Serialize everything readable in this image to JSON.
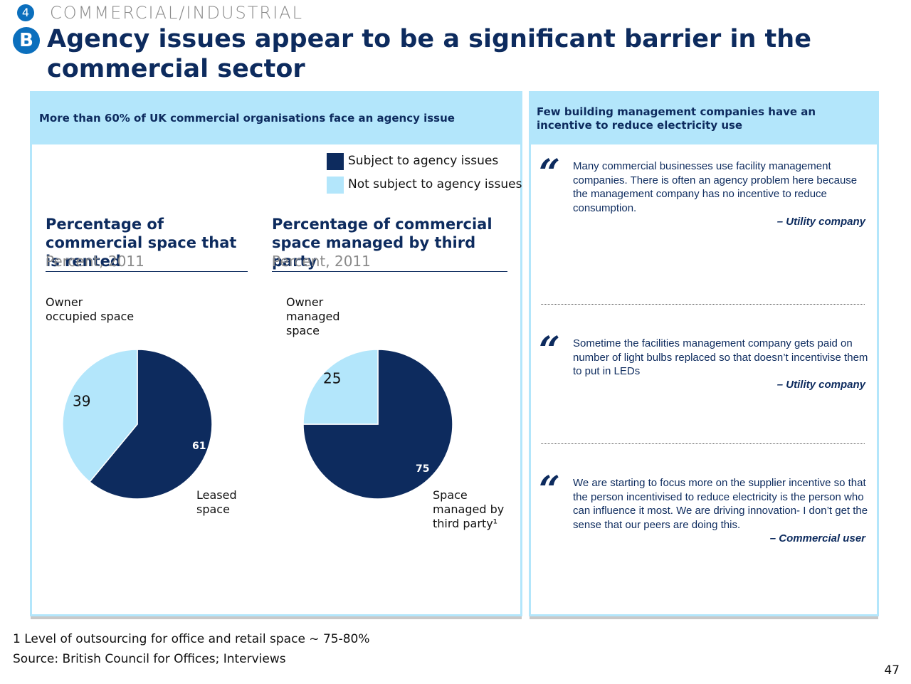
{
  "header": {
    "section_number": "4",
    "section_label": "COMMERCIAL/INDUSTRIAL",
    "sub_letter": "B",
    "title": "Agency issues appear to be a significant barrier in the commercial sector"
  },
  "left_panel": {
    "heading": "More than 60% of UK commercial organisations face an agency issue",
    "legend": [
      {
        "label": "Subject to agency issues",
        "color": "#0d2b5e"
      },
      {
        "label": "Not subject to agency issues",
        "color": "#b3e6fb"
      }
    ]
  },
  "chart_data": [
    {
      "type": "pie",
      "title": "Percentage of commercial space that is rented",
      "unit": "Percent, 2011",
      "slices": [
        {
          "label": "Leased space",
          "value": 61,
          "value_label": "61",
          "color": "#0d2b5e"
        },
        {
          "label": "Owner occupied space",
          "value": 39,
          "value_label": "39",
          "color": "#b3e6fb"
        }
      ],
      "label_lines": {
        "owner": [
          "Owner",
          "occupied space"
        ],
        "agency": [
          "Leased",
          "space"
        ]
      }
    },
    {
      "type": "pie",
      "title": "Percentage of commercial space managed by third party",
      "unit": "Percent, 2011",
      "slices": [
        {
          "label": "Space managed by third party",
          "value": 75,
          "value_label": "75",
          "color": "#0d2b5e"
        },
        {
          "label": "Owner managed space",
          "value": 25,
          "value_label": "25",
          "color": "#b3e6fb"
        }
      ],
      "label_lines": {
        "owner": [
          "Owner",
          "managed",
          "space"
        ],
        "agency": [
          "Space",
          "managed by",
          "third party¹"
        ]
      }
    }
  ],
  "right_panel": {
    "heading": "Few building management companies have an incentive to reduce electricity use",
    "quotes": [
      {
        "text": "Many commercial businesses use facility management companies. There is often an agency problem here because the management company has no incentive to reduce consumption.",
        "attribution": "– Utility company"
      },
      {
        "text": "Sometime the facilities management company gets paid on number of light bulbs replaced so that doesn’t incentivise them to put in LEDs",
        "attribution": "– Utility company"
      },
      {
        "text": "We are starting to focus more on the supplier incentive so that the person incentivised to reduce electricity is the person who can influence it most. We are driving innovation- I don’t get the sense that our peers are doing this.",
        "attribution": "– Commercial user"
      }
    ],
    "quote_mark": "“"
  },
  "footer": {
    "footnote": "1 Level of outsourcing for office and retail space ~ 75-80%",
    "source": "Source: British Council for Offices; Interviews",
    "page_number": "47"
  }
}
